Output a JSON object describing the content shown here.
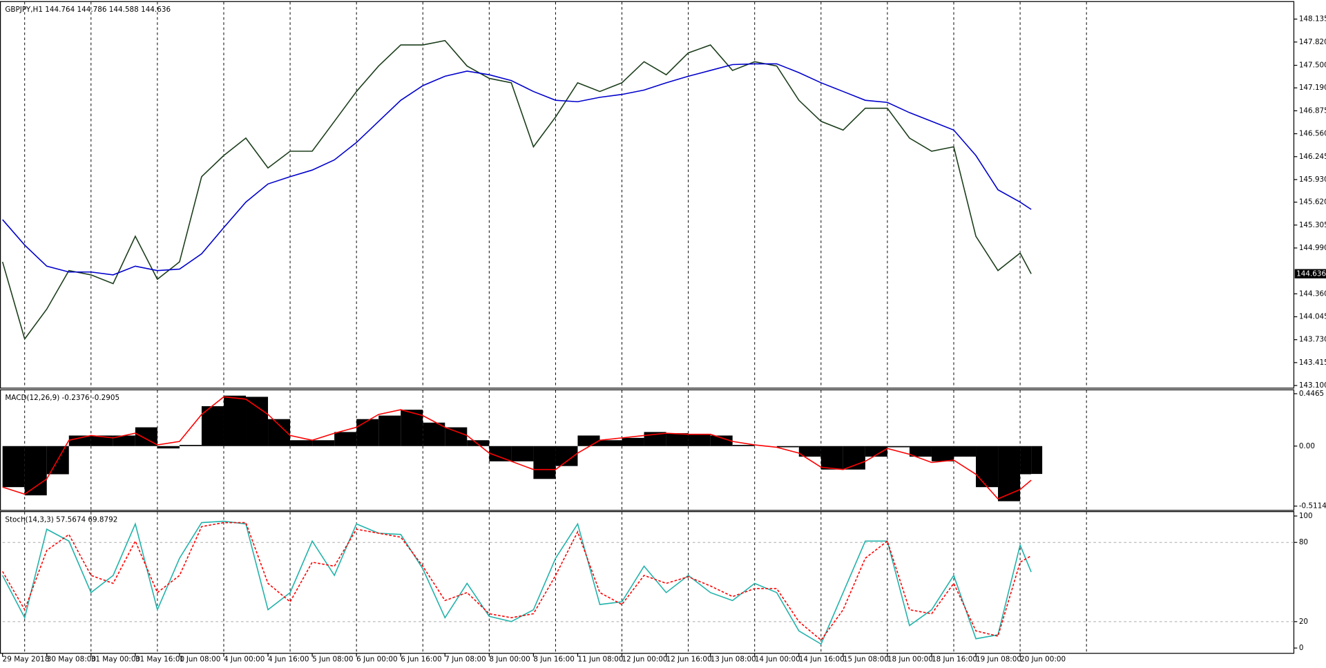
{
  "chart_data": [
    {
      "type": "line",
      "title": "GBPJPY,H1  144.764 144.786 144.588 144.636",
      "current_price": 144.636,
      "x": [
        0,
        8,
        16,
        24,
        32,
        40,
        48,
        56,
        64,
        72,
        80,
        88,
        96,
        104,
        112,
        120,
        128,
        136,
        144,
        152,
        160,
        168,
        176,
        184,
        192,
        200,
        208,
        216,
        224,
        232,
        240,
        248,
        256,
        264,
        272,
        280,
        288,
        296,
        304,
        312,
        320,
        328,
        336,
        344,
        352,
        360,
        368,
        372
      ],
      "xlim": [
        0,
        467
      ],
      "ylim": [
        143.07,
        148.37
      ],
      "yticks": [
        148.135,
        {
          "value": 147.82,
          "label": "147.820"
        },
        {
          "value": 147.5,
          "label": "147.500"
        },
        {
          "value": 147.19,
          "label": "147.190"
        },
        146.875,
        {
          "value": 146.56,
          "label": "146.560"
        },
        146.245,
        {
          "value": 145.93,
          "label": "145.930"
        },
        {
          "value": 145.62,
          "label": "145.620"
        },
        145.305,
        {
          "value": 144.99,
          "label": "144.990"
        },
        {
          "value": 144.36,
          "label": "144.360"
        },
        144.045,
        {
          "value": 143.73,
          "label": "143.730"
        },
        143.415,
        {
          "value": 143.1,
          "label": "143.100"
        }
      ],
      "vgrid": [
        8,
        32,
        56,
        80,
        104,
        128,
        152,
        176,
        200,
        224,
        248,
        272,
        296,
        320,
        344,
        368,
        392
      ],
      "series": [
        {
          "color": "#1b3d1b",
          "values": [
            144.8,
            143.74,
            144.15,
            144.68,
            144.62,
            144.5,
            145.15,
            144.56,
            144.8,
            145.97,
            146.26,
            146.5,
            146.09,
            146.32,
            146.32,
            146.73,
            147.14,
            147.49,
            147.78,
            147.78,
            147.84,
            147.49,
            147.32,
            147.26,
            146.38,
            146.79,
            147.26,
            147.14,
            147.26,
            147.55,
            147.37,
            147.67,
            147.78,
            147.43,
            147.55,
            147.49,
            147.02,
            146.73,
            146.61,
            146.91,
            146.91,
            146.5,
            146.32,
            146.38,
            145.15,
            144.68,
            144.92,
            144.636
          ]
        },
        {
          "color": "#0000cc",
          "values": [
            145.38,
            145.03,
            144.74,
            144.66,
            144.66,
            144.62,
            144.74,
            144.68,
            144.7,
            144.91,
            145.27,
            145.62,
            145.87,
            145.97,
            146.06,
            146.2,
            146.44,
            146.73,
            147.02,
            147.22,
            147.35,
            147.42,
            147.37,
            147.29,
            147.14,
            147.02,
            147.0,
            147.06,
            147.1,
            147.16,
            147.26,
            147.35,
            147.43,
            147.51,
            147.52,
            147.52,
            147.4,
            147.26,
            147.14,
            147.02,
            146.99,
            146.85,
            146.73,
            146.61,
            146.26,
            145.79,
            145.62,
            145.52
          ]
        }
      ]
    },
    {
      "type": "combo",
      "title": "MACD(12,26,9) -0.2376 -0.2905",
      "x": [
        0,
        8,
        16,
        24,
        32,
        40,
        48,
        56,
        64,
        72,
        80,
        88,
        96,
        104,
        112,
        120,
        128,
        136,
        144,
        152,
        160,
        168,
        176,
        184,
        192,
        200,
        208,
        216,
        224,
        232,
        240,
        248,
        256,
        264,
        272,
        280,
        288,
        296,
        304,
        312,
        320,
        328,
        336,
        344,
        352,
        360,
        368,
        372
      ],
      "xlim": [
        0,
        467
      ],
      "ylim": [
        -0.548,
        0.476
      ],
      "yticks": [
        0.4465,
        {
          "value": 0,
          "label": "0.00"
        },
        -0.5114
      ],
      "vgrid": [
        8,
        32,
        56,
        80,
        104,
        128,
        152,
        176,
        200,
        224,
        248,
        272,
        296,
        320,
        344,
        368,
        392
      ],
      "series": [
        {
          "type": "bar",
          "color": "#000000",
          "values": [
            -0.35,
            -0.42,
            -0.24,
            0.09,
            0.09,
            0.09,
            0.16,
            -0.02,
            0.01,
            0.34,
            0.43,
            0.42,
            0.23,
            0.05,
            0.05,
            0.12,
            0.23,
            0.26,
            0.31,
            0.2,
            0.16,
            0.05,
            -0.13,
            -0.13,
            -0.28,
            -0.17,
            0.09,
            0.05,
            0.07,
            0.12,
            0.11,
            0.1,
            0.09,
            0.01,
            0.0,
            -0.01,
            -0.09,
            -0.2,
            -0.2,
            -0.09,
            -0.01,
            -0.09,
            -0.13,
            -0.09,
            -0.35,
            -0.47,
            -0.24,
            -0.2376
          ]
        },
        {
          "type": "line",
          "color": "#ff0000",
          "values": [
            -0.35,
            -0.41,
            -0.28,
            0.05,
            0.09,
            0.07,
            0.11,
            0.01,
            0.04,
            0.27,
            0.42,
            0.4,
            0.27,
            0.09,
            0.05,
            0.11,
            0.16,
            0.27,
            0.31,
            0.26,
            0.16,
            0.09,
            -0.06,
            -0.13,
            -0.2,
            -0.2,
            -0.06,
            0.05,
            0.07,
            0.09,
            0.11,
            0.1,
            0.1,
            0.04,
            0.01,
            -0.01,
            -0.06,
            -0.18,
            -0.2,
            -0.13,
            -0.02,
            -0.07,
            -0.14,
            -0.12,
            -0.24,
            -0.45,
            -0.37,
            -0.2905
          ]
        }
      ]
    },
    {
      "type": "line",
      "title": "Stoch(14,3,3) 57.5674 69.8792",
      "x": [
        0,
        8,
        16,
        24,
        32,
        40,
        48,
        56,
        64,
        72,
        80,
        88,
        96,
        104,
        112,
        120,
        128,
        136,
        144,
        152,
        160,
        168,
        176,
        184,
        192,
        200,
        208,
        216,
        224,
        232,
        240,
        248,
        256,
        264,
        272,
        280,
        288,
        296,
        304,
        312,
        320,
        328,
        336,
        344,
        352,
        360,
        368,
        372
      ],
      "xlim": [
        0,
        467
      ],
      "ylim": [
        -4,
        103
      ],
      "yticks": [
        100,
        80,
        20,
        0
      ],
      "hlines": [
        80,
        20
      ],
      "vgrid": [
        8,
        32,
        56,
        80,
        104,
        128,
        152,
        176,
        200,
        224,
        248,
        272,
        296,
        320,
        344,
        368,
        392
      ],
      "xticks": [
        {
          "value": 0,
          "label": "29 May 2018"
        },
        {
          "value": 16,
          "label": "30 May 08:00"
        },
        {
          "value": 32,
          "label": "31 May 00:00"
        },
        {
          "value": 48,
          "label": "31 May 16:00"
        },
        {
          "value": 64,
          "label": "1 Jun 08:00"
        },
        {
          "value": 80,
          "label": "4 Jun 00:00"
        },
        {
          "value": 96,
          "label": "4 Jun 16:00"
        },
        {
          "value": 112,
          "label": "5 Jun 08:00"
        },
        {
          "value": 128,
          "label": "6 Jun 00:00"
        },
        {
          "value": 144,
          "label": "6 Jun 16:00"
        },
        {
          "value": 160,
          "label": "7 Jun 08:00"
        },
        {
          "value": 176,
          "label": "8 Jun 00:00"
        },
        {
          "value": 192,
          "label": "8 Jun 16:00"
        },
        {
          "value": 208,
          "label": "11 Jun 08:00"
        },
        {
          "value": 224,
          "label": "12 Jun 00:00"
        },
        {
          "value": 240,
          "label": "12 Jun 16:00"
        },
        {
          "value": 256,
          "label": "13 Jun 08:00"
        },
        {
          "value": 272,
          "label": "14 Jun 00:00"
        },
        {
          "value": 288,
          "label": "14 Jun 16:00"
        },
        {
          "value": 304,
          "label": "15 Jun 08:00"
        },
        {
          "value": 320,
          "label": "18 Jun 00:00"
        },
        {
          "value": 336,
          "label": "18 Jun 16:00"
        },
        {
          "value": 352,
          "label": "19 Jun 08:00"
        },
        {
          "value": 368,
          "label": "20 Jun 00:00"
        }
      ],
      "series": [
        {
          "color": "#20b2aa",
          "values": [
            55,
            23,
            90,
            81,
            42,
            55,
            94,
            29,
            68,
            95,
            96,
            94,
            29,
            42,
            81,
            55,
            94,
            87,
            86,
            60,
            23,
            49,
            24,
            20,
            29,
            68,
            94,
            33,
            35,
            62,
            42,
            55,
            42,
            36,
            49,
            42,
            13,
            3,
            42,
            81,
            81,
            17,
            29,
            55,
            7,
            10,
            78,
            57.5674
          ]
        },
        {
          "color": "#ff0000",
          "dash": true,
          "values": [
            58,
            29,
            74,
            86,
            55,
            49,
            81,
            42,
            55,
            92,
            95,
            95,
            49,
            35,
            65,
            62,
            90,
            87,
            84,
            62,
            36,
            42,
            26,
            23,
            26,
            55,
            88,
            42,
            33,
            55,
            49,
            54,
            47,
            39,
            45,
            45,
            20,
            6,
            29,
            68,
            81,
            29,
            26,
            49,
            13,
            9,
            65,
            69.8792
          ]
        }
      ]
    }
  ]
}
